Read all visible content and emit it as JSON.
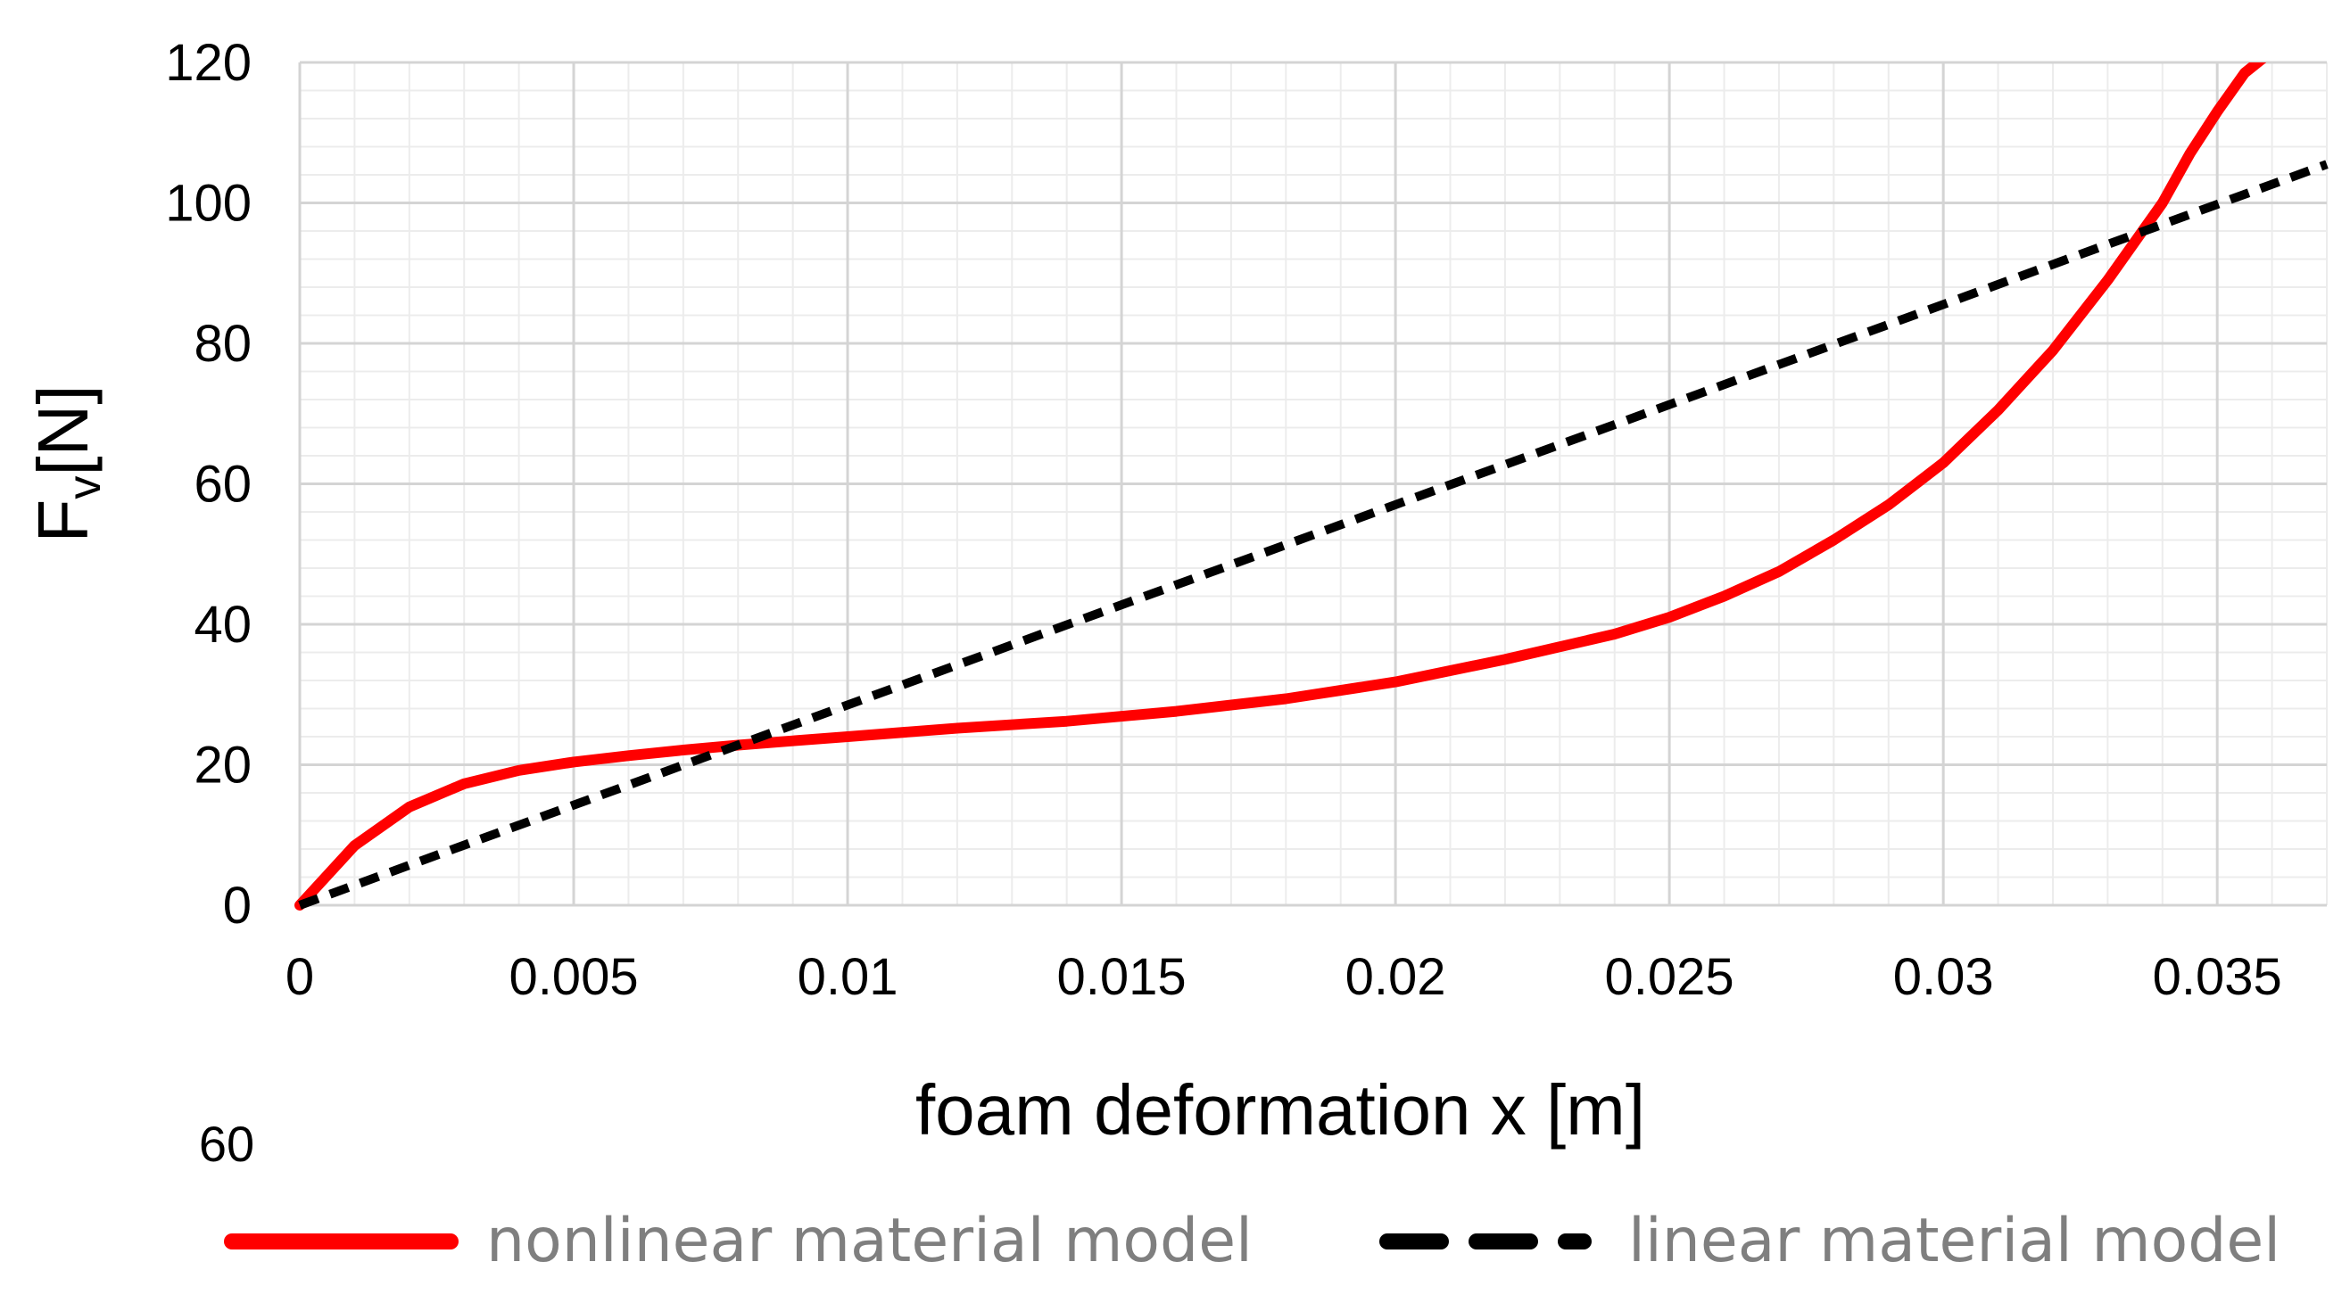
{
  "chart_data": {
    "type": "line",
    "xlabel": "foam deformation x [m]",
    "ylabel_main": "F",
    "ylabel_sub": "v",
    "ylabel_unit": "[N]",
    "stray_label": "60",
    "xlim": [
      0,
      0.037
    ],
    "ylim": [
      0,
      120
    ],
    "xticks": [
      0,
      0.005,
      0.01,
      0.015,
      0.02,
      0.025,
      0.03,
      0.035
    ],
    "xtick_labels": [
      "0",
      "0.005",
      "0.01",
      "0.015",
      "0.02",
      "0.025",
      "0.03",
      "0.035"
    ],
    "yticks": [
      0,
      20,
      40,
      60,
      80,
      100,
      120
    ],
    "ytick_labels": [
      "0",
      "20",
      "40",
      "60",
      "80",
      "100",
      "120"
    ],
    "grid": true,
    "legend_position": "bottom",
    "series": [
      {
        "name": "nonlinear material model",
        "color": "#ff0000",
        "style": "solid",
        "x": [
          0,
          0.001,
          0.002,
          0.003,
          0.004,
          0.005,
          0.006,
          0.007,
          0.008,
          0.009,
          0.01,
          0.012,
          0.014,
          0.016,
          0.018,
          0.02,
          0.022,
          0.024,
          0.025,
          0.026,
          0.027,
          0.028,
          0.029,
          0.03,
          0.031,
          0.032,
          0.033,
          0.034,
          0.0345,
          0.035,
          0.0355,
          0.0359
        ],
        "y": [
          0,
          8.5,
          14,
          17.3,
          19.2,
          20.4,
          21.3,
          22.1,
          22.8,
          23.4,
          24,
          25.2,
          26.2,
          27.6,
          29.4,
          31.8,
          35,
          38.6,
          41,
          44,
          47.5,
          52,
          57,
          63,
          70.5,
          79,
          89,
          100,
          107,
          113,
          118.5,
          121
        ]
      },
      {
        "name": "linear material model",
        "color": "#000000",
        "style": "dashed",
        "x": [
          0,
          0.037
        ],
        "y": [
          0,
          105.5
        ]
      }
    ]
  }
}
